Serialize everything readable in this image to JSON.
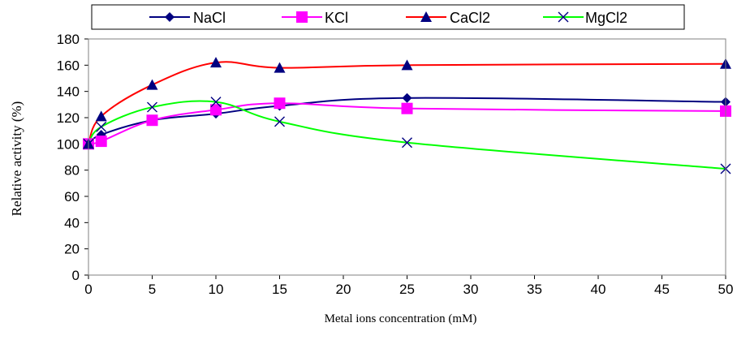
{
  "chart_data": {
    "type": "line",
    "title": "",
    "xlabel": "Metal ions concentration (mM)",
    "ylabel": "Relative activity (%)",
    "xlim": [
      0,
      50
    ],
    "ylim": [
      0,
      180
    ],
    "xticks": [
      0,
      5,
      10,
      15,
      20,
      25,
      30,
      35,
      40,
      45,
      50
    ],
    "yticks": [
      0,
      20,
      40,
      60,
      80,
      100,
      120,
      140,
      160,
      180
    ],
    "grid": false,
    "legend_position": "top",
    "x": [
      0,
      1,
      5,
      10,
      15,
      25,
      50
    ],
    "series": [
      {
        "name": "NaCl",
        "color": "#000080",
        "marker": "diamond",
        "marker_color": "#000080",
        "values": [
          100,
          107,
          118,
          123,
          129,
          135,
          132
        ]
      },
      {
        "name": "KCl",
        "color": "#ff00ff",
        "marker": "square",
        "marker_color": "#ff00ff",
        "values": [
          100,
          102,
          118,
          126,
          131,
          127,
          125
        ]
      },
      {
        "name": "CaCl2",
        "color": "#ff0000",
        "marker": "triangle",
        "marker_color": "#000080",
        "values": [
          100,
          121,
          145,
          162,
          158,
          160,
          161
        ]
      },
      {
        "name": "MgCl2",
        "color": "#00ff00",
        "marker": "x",
        "marker_color": "#000080",
        "values": [
          100,
          113,
          128,
          132,
          117,
          101,
          81
        ]
      }
    ]
  }
}
